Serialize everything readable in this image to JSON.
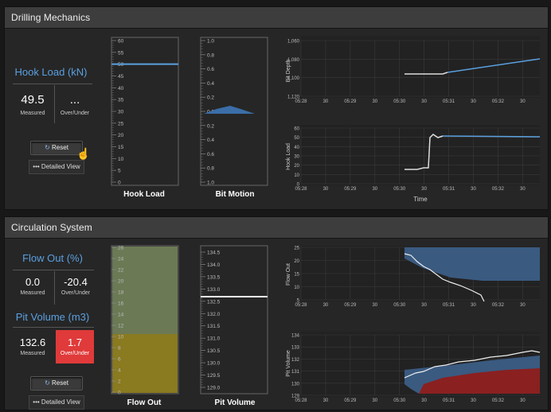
{
  "drilling": {
    "title": "Drilling Mechanics",
    "hook_load_title": "Hook Load (kN)",
    "measured_value": "49.5",
    "measured_label": "Measured",
    "overunder_value": "...",
    "overunder_label": "Over/Under",
    "reset_label": "Reset",
    "detailed_label": "Detailed View",
    "hook_gauge_label": "Hook Load",
    "hook_gauge_ticks": [
      "60",
      "55",
      "50",
      "45",
      "40",
      "35",
      "30",
      "25",
      "20",
      "15",
      "10",
      "5",
      "0"
    ],
    "hook_gauge_value": 50,
    "bit_gauge_label": "Bit Motion",
    "bit_gauge_ticks": [
      "1.0",
      "0.8",
      "0.6",
      "0.4",
      "0.2",
      "0.0",
      "0.2",
      "0.4",
      "0.6",
      "0.8",
      "1.0"
    ],
    "bit_depth_chart": {
      "ylabel": "Bit Depth",
      "yticks": [
        "1,060",
        "1,080",
        "1,100",
        "1,120"
      ],
      "xticks": [
        "05:28",
        "30",
        "05:29",
        "30",
        "05:30",
        "30",
        "05:31",
        "30",
        "05:32",
        "30"
      ]
    },
    "hook_load_chart": {
      "ylabel": "Hook Load",
      "yticks": [
        "60",
        "50",
        "40",
        "30",
        "20",
        "10",
        "0"
      ],
      "xticks": [
        "05:28",
        "30",
        "05:29",
        "30",
        "05:30",
        "30",
        "05:31",
        "30",
        "05:32",
        "30"
      ],
      "xlabel": "Time"
    }
  },
  "circulation": {
    "title": "Circulation System",
    "flow_out_title": "Flow Out (%)",
    "flow_measured_value": "0.0",
    "flow_measured_label": "Measured",
    "flow_overunder_value": "-20.4",
    "flow_overunder_label": "Over/Under",
    "pit_title": "Pit Volume (m3)",
    "pit_measured_value": "132.6",
    "pit_measured_label": "Measured",
    "pit_overunder_value": "1.7",
    "pit_overunder_label": "Over/Under",
    "reset_label": "Reset",
    "detailed_label": "Detailed View",
    "flow_gauge_label": "Flow Out",
    "flow_gauge_ticks": [
      "26",
      "24",
      "22",
      "20",
      "18",
      "16",
      "14",
      "12",
      "10",
      "8",
      "6",
      "4",
      "2",
      "0"
    ],
    "pit_gauge_label": "Pit Volume",
    "pit_gauge_ticks": [
      "134.5",
      "134.0",
      "133.5",
      "133.0",
      "132.5",
      "132.0",
      "131.5",
      "131.0",
      "130.5",
      "130.0",
      "129.5",
      "129.0"
    ],
    "flow_chart": {
      "ylabel": "Flow Out",
      "yticks": [
        "25",
        "20",
        "15",
        "10",
        "5"
      ],
      "xticks": [
        "05:28",
        "30",
        "05:29",
        "30",
        "05:30",
        "30",
        "05:31",
        "30",
        "05:32",
        "30"
      ]
    },
    "pit_chart": {
      "ylabel": "Pit Volume",
      "yticks": [
        "134",
        "133",
        "132",
        "131",
        "130",
        "129"
      ],
      "xticks": [
        "05:28",
        "30",
        "05:29",
        "30",
        "05:30",
        "30",
        "05:31",
        "30",
        "05:32",
        "30"
      ]
    }
  },
  "colors": {
    "accent_blue": "#5aa0e0",
    "alert_red": "#e03a3a",
    "gauge_green": "#6b7a55",
    "gauge_yellow": "#8a7a20",
    "band_blue": "#3a5a80",
    "band_red": "#8a2020"
  }
}
